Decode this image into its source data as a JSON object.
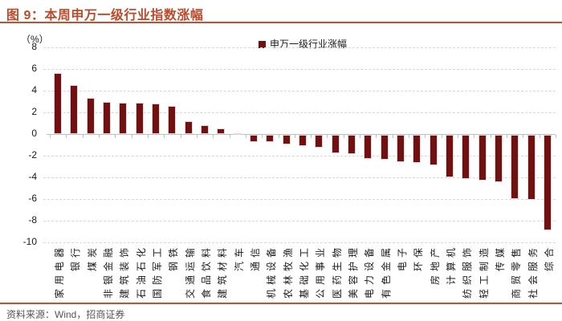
{
  "figure": {
    "title": "图 9：本周申万一级行业指数涨幅",
    "source": "资料来源：Wind，招商证券"
  },
  "chart_data": {
    "type": "bar",
    "title": "本周申万一级行业指数涨幅",
    "legend": [
      "申万一级行业涨幅"
    ],
    "legend_position": "top-center",
    "ylabel": "（%）",
    "ylim": [
      -10,
      8
    ],
    "yticks": [
      8,
      6,
      4,
      2,
      0,
      -2,
      -4,
      -6,
      -8,
      -10
    ],
    "grid": "horizontal-dashed",
    "categories": [
      "家用电器",
      "银行",
      "煤炭",
      "非银金融",
      "建筑装饰",
      "石油石化",
      "国防军工",
      "钢铁",
      "交通运输",
      "食品饮料",
      "建筑材料",
      "汽车",
      "通信",
      "机械设备",
      "农林牧渔",
      "基础化工",
      "公用事业",
      "医药生物",
      "美容护理",
      "电力设备",
      "有色金属",
      "电子",
      "环保",
      "房地产",
      "计算机",
      "纺织服饰",
      "轻工制造",
      "传媒",
      "商贸零售",
      "社会服务",
      "综合"
    ],
    "values": [
      5.6,
      4.5,
      3.3,
      3.0,
      2.9,
      2.9,
      2.8,
      2.6,
      1.2,
      0.8,
      0.5,
      0.1,
      -0.7,
      -0.7,
      -0.9,
      -1.0,
      -1.2,
      -1.7,
      -1.8,
      -2.2,
      -2.3,
      -2.5,
      -2.6,
      -2.8,
      -3.9,
      -4.1,
      -4.2,
      -4.4,
      -5.9,
      -6.0,
      -8.8
    ]
  },
  "colors": {
    "accent_rule": "#C4502E",
    "title_text": "#BC4A2A",
    "bar": "#701010",
    "gridline": "#D8D8D8",
    "axis": "#BFBFBF",
    "source_text": "#555555"
  }
}
